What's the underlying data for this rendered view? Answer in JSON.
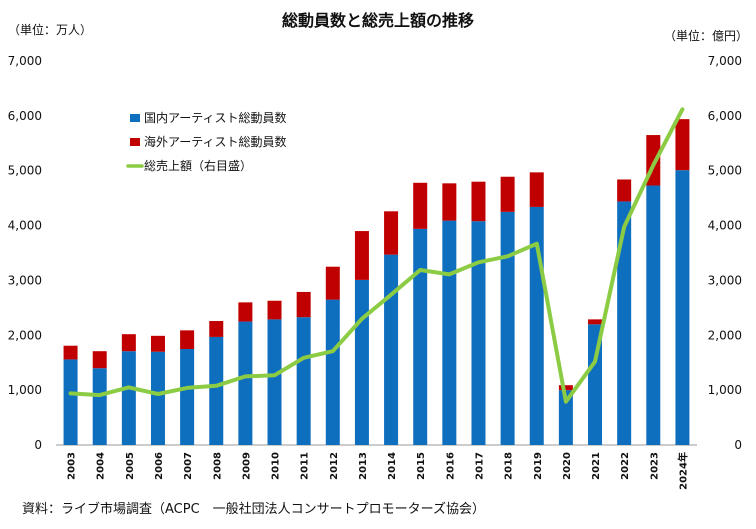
{
  "chart_data": {
    "type": "bar",
    "title": "総動員数と総売上額の推移",
    "left_unit": "（単位：万人）",
    "right_unit": "（単位：億円）",
    "categories": [
      "2003",
      "2004",
      "2005",
      "2006",
      "2007",
      "2008",
      "2009",
      "2010",
      "2011",
      "2012",
      "2013",
      "2014",
      "2015",
      "2016",
      "2017",
      "2018",
      "2019",
      "2020",
      "2021",
      "2022",
      "2023",
      "2024年"
    ],
    "ylim": [
      0,
      7000
    ],
    "y2lim": [
      0,
      7000
    ],
    "yticks": [
      "0",
      "1,000",
      "2,000",
      "3,000",
      "4,000",
      "5,000",
      "6,000",
      "7,000"
    ],
    "y2ticks": [
      "0",
      "1,000",
      "2,000",
      "3,000",
      "4,000",
      "5,000",
      "6,000",
      "7,000"
    ],
    "series": [
      {
        "name": "国内アーティスト総動員数",
        "type": "bar",
        "stack": "total",
        "color": "#0f6fbf",
        "values": [
          1560,
          1400,
          1710,
          1700,
          1750,
          1970,
          2250,
          2290,
          2330,
          2650,
          3010,
          3470,
          3940,
          4090,
          4080,
          4250,
          4340,
          1000,
          2200,
          4440,
          4730,
          5010
        ]
      },
      {
        "name": "海外アーティスト総動員数",
        "type": "bar",
        "stack": "total",
        "color": "#c00000",
        "values": [
          250,
          310,
          310,
          290,
          340,
          290,
          350,
          340,
          460,
          600,
          890,
          790,
          840,
          680,
          720,
          640,
          630,
          90,
          90,
          400,
          920,
          930
        ]
      },
      {
        "name": "総売上額（右目盛）",
        "type": "line",
        "axis": "right",
        "color": "#8ccc44",
        "values": [
          940,
          910,
          1050,
          930,
          1040,
          1080,
          1250,
          1270,
          1590,
          1710,
          2300,
          2740,
          3190,
          3110,
          3330,
          3440,
          3670,
          790,
          1520,
          3980,
          5100,
          6120
        ]
      }
    ],
    "legend_position": "top-left",
    "source": "資料：ライブ市場調査（ACPC　一般社団法人コンサートプロモーターズ協会）"
  }
}
